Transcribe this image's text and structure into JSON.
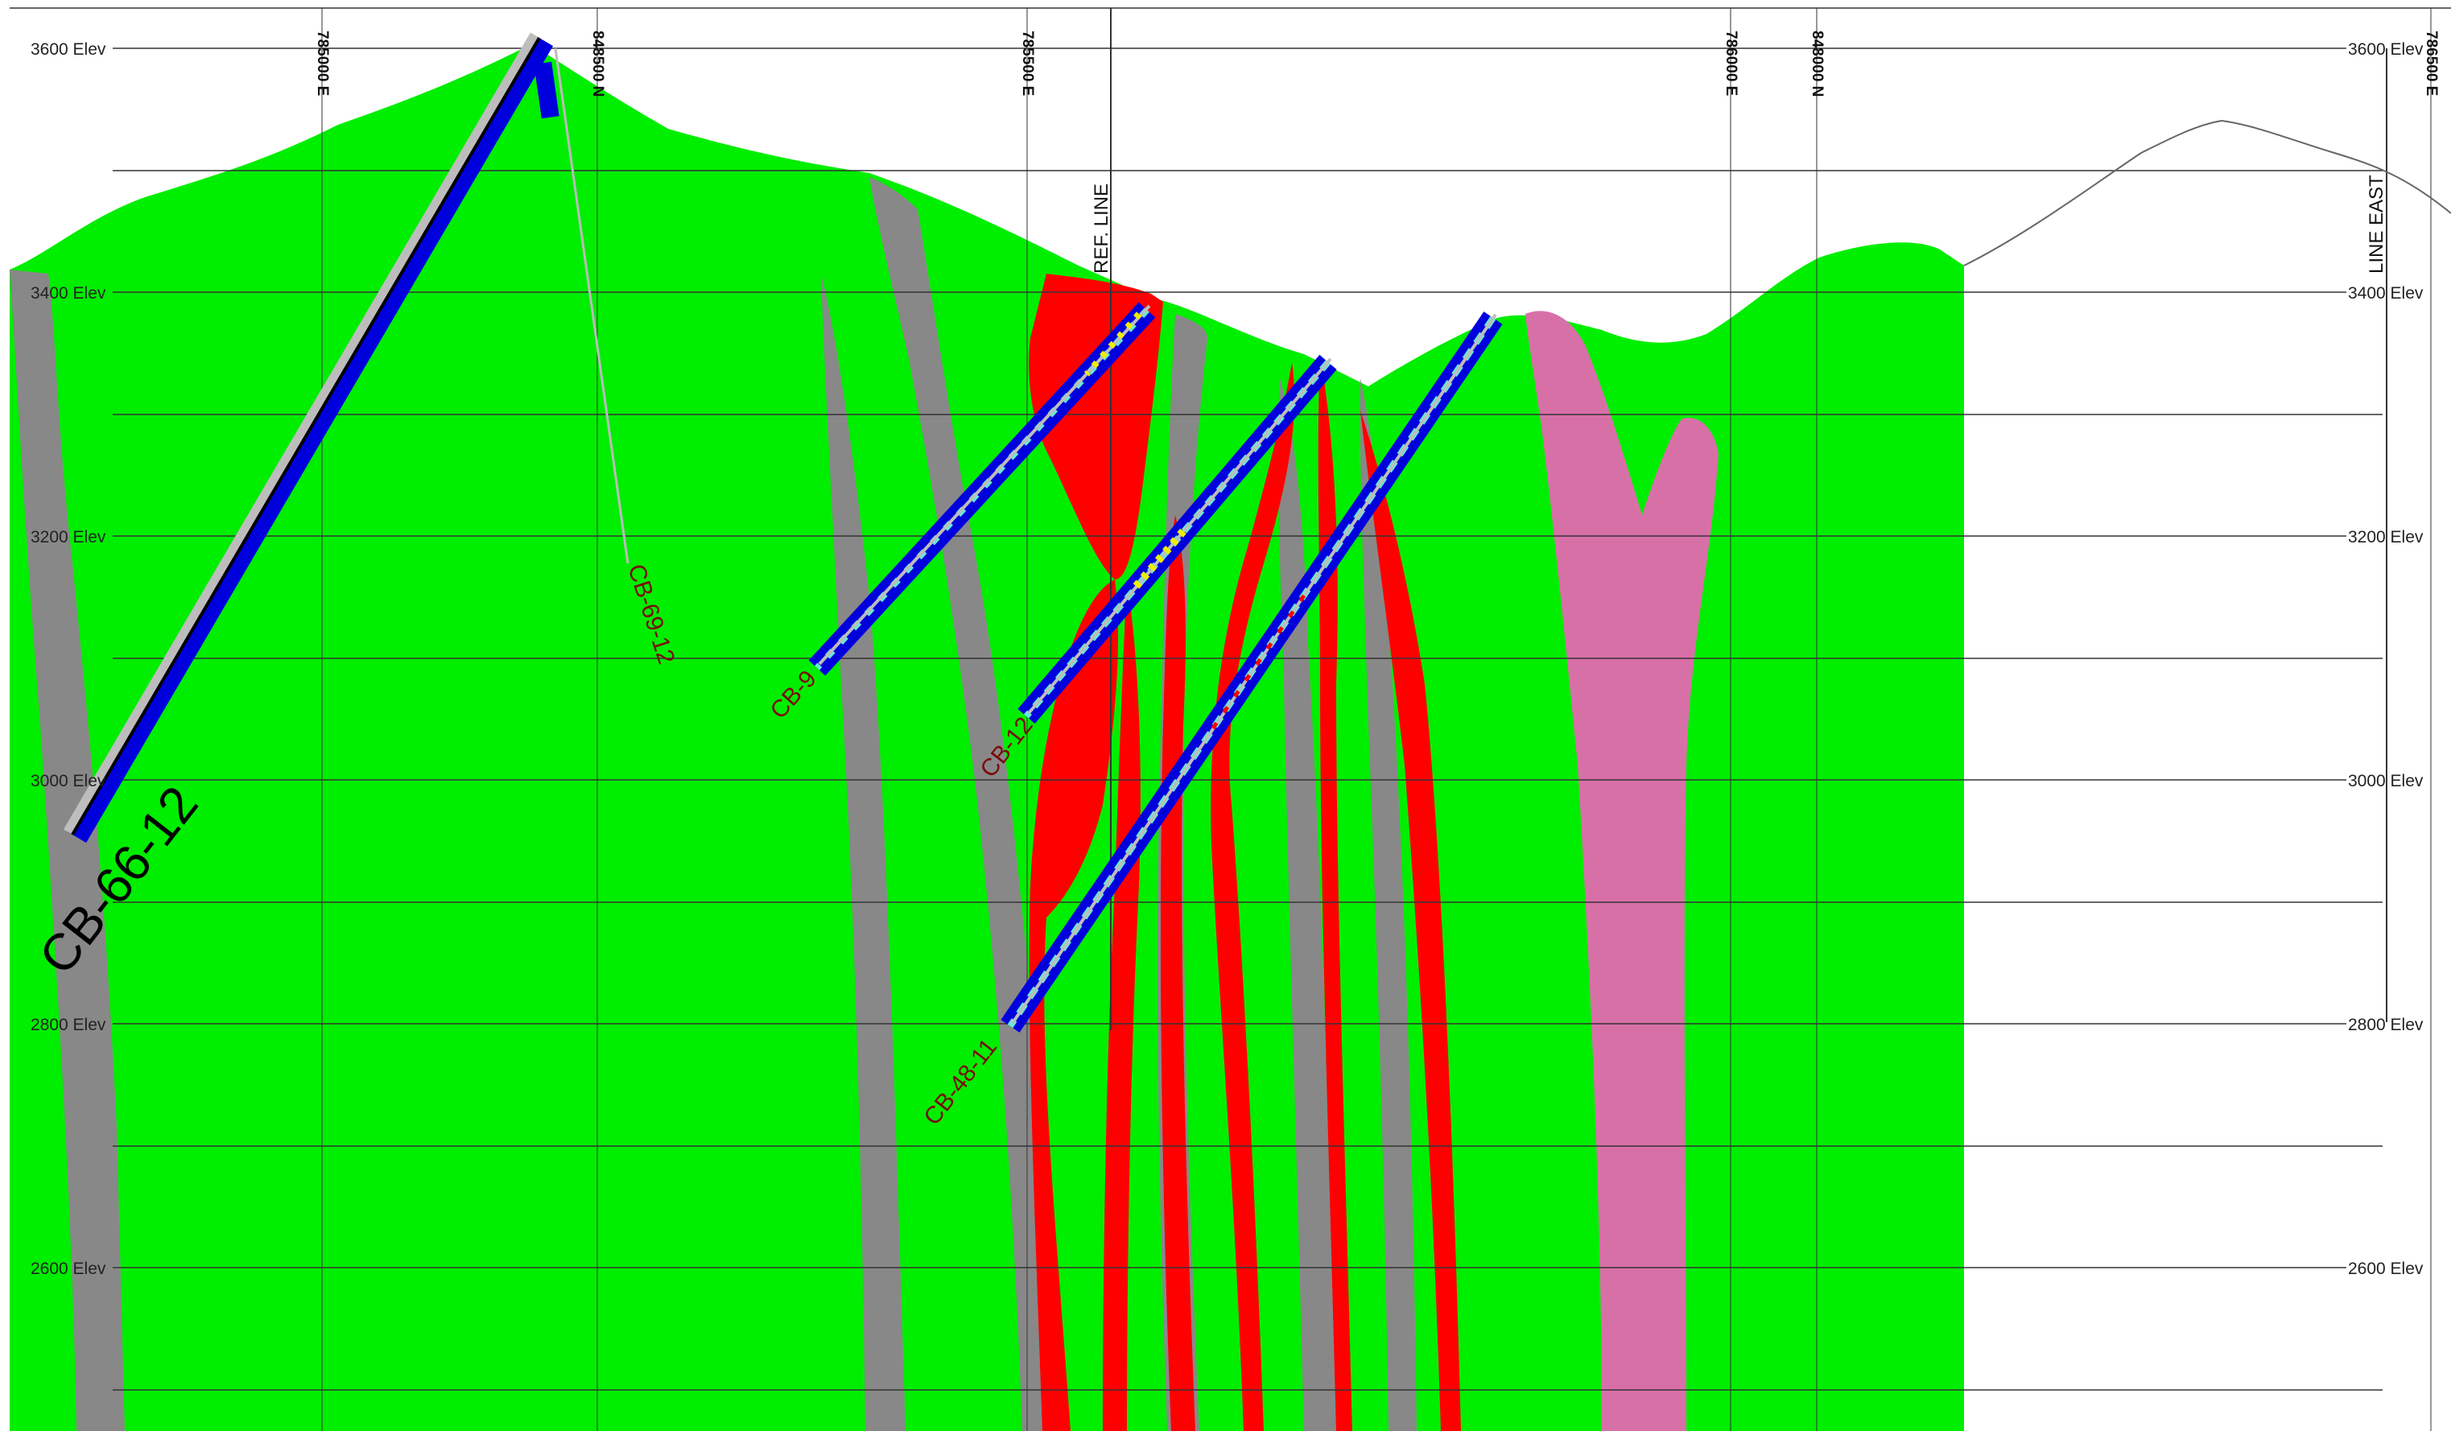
{
  "section": {
    "elevations": [
      {
        "label": "3600 Elev",
        "value": 3600
      },
      {
        "label": "3400 Elev",
        "value": 3400
      },
      {
        "label": "3200 Elev",
        "value": 3200
      },
      {
        "label": "3000 Elev",
        "value": 3000
      },
      {
        "label": "2800 Elev",
        "value": 2800
      },
      {
        "label": "2600 Elev",
        "value": 2600
      }
    ],
    "grid_labels": {
      "e1": "785000 E",
      "n1": "848500 N",
      "e2": "785500 E",
      "e3": "786000 E",
      "n2": "848000 N",
      "e4": "786500 E"
    },
    "ref_line": "REF. LINE",
    "line_east": "LINE EAST",
    "drillholes": {
      "cb66": "CB-66-12",
      "cb69": "CB-69-12",
      "cb9": "CB-9",
      "cb12": "CB-12",
      "cb48": "CB-48-11"
    },
    "colors": {
      "host_rock": "#00ee00",
      "dike_gray": "#888888",
      "mineralized_red": "#ff0000",
      "intrusive_pink": "#d870a8",
      "drill_blue": "#0000dd",
      "drill_core": "#bdbdbd",
      "assay_cyan": "#66e8d8",
      "assay_yellow": "#eeee00"
    }
  }
}
